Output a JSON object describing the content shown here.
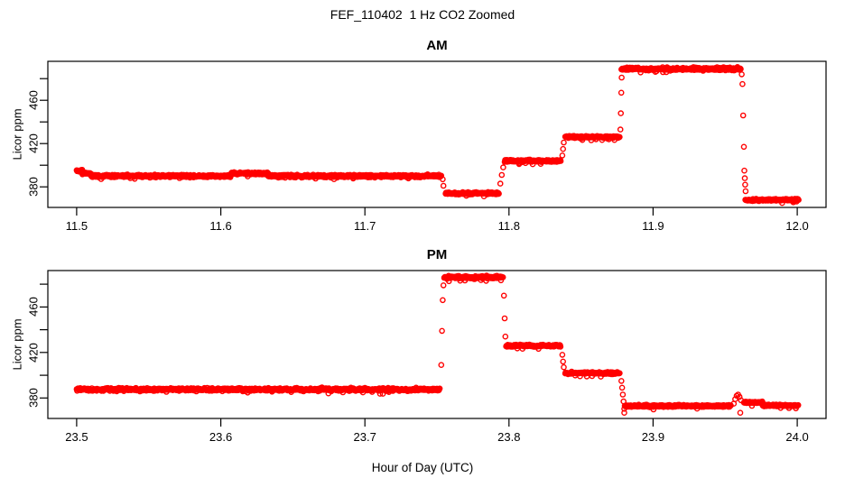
{
  "figure": {
    "title": "FEF_110402  1 Hz CO2 Zoomed",
    "xlabel": "Hour of Day (UTC)",
    "background": "#FFFFFF",
    "axis_color": "#000000",
    "point_color": "#FF0000"
  },
  "chart_data": [
    {
      "type": "scatter",
      "panel": "AM",
      "title": "AM",
      "ylabel": "Licor ppm",
      "xlabel": "",
      "marker": "open-circle",
      "color": "#FF0000",
      "sample_interval_s": 1,
      "grid": false,
      "legend": null,
      "xlim": [
        11.48,
        12.02
      ],
      "ylim": [
        361,
        496
      ],
      "xticks": [
        {
          "v": 11.5,
          "label": "11.5"
        },
        {
          "v": 11.6,
          "label": "11.6"
        },
        {
          "v": 11.7,
          "label": "11.7"
        },
        {
          "v": 11.8,
          "label": "11.8"
        },
        {
          "v": 11.9,
          "label": "11.9"
        },
        {
          "v": 12.0,
          "label": "12.0"
        }
      ],
      "yticks": [
        {
          "v": 380,
          "label": "380"
        },
        {
          "v": 400,
          "label": ""
        },
        {
          "v": 420,
          "label": "420"
        },
        {
          "v": 440,
          "label": ""
        },
        {
          "v": 460,
          "label": "460"
        },
        {
          "v": 480,
          "label": ""
        }
      ],
      "segments": [
        [
          11.5,
          11.504,
          395.0,
          0.9
        ],
        [
          11.504,
          11.51,
          392.5,
          0.9
        ],
        [
          11.51,
          11.607,
          390.0,
          1.2
        ],
        [
          11.607,
          11.633,
          392.5,
          1.0
        ],
        [
          11.633,
          11.753,
          390.0,
          1.2
        ],
        [
          11.756,
          11.793,
          374.0,
          1.0
        ],
        [
          11.797,
          11.836,
          404.0,
          1.0
        ],
        [
          11.839,
          11.877,
          426.0,
          1.0
        ],
        [
          11.878,
          11.961,
          489.0,
          1.3
        ],
        [
          11.964,
          12.001,
          368.0,
          0.9
        ]
      ],
      "extra_points": [
        [
          11.754,
          387
        ],
        [
          11.7545,
          381
        ],
        [
          11.794,
          383
        ],
        [
          11.795,
          391
        ],
        [
          11.796,
          398
        ],
        [
          11.837,
          409
        ],
        [
          11.8375,
          415
        ],
        [
          11.838,
          421
        ],
        [
          11.8773,
          433
        ],
        [
          11.8776,
          448
        ],
        [
          11.8779,
          467
        ],
        [
          11.8782,
          481
        ],
        [
          11.9615,
          484
        ],
        [
          11.962,
          475
        ],
        [
          11.9625,
          446
        ],
        [
          11.963,
          417
        ],
        [
          11.9633,
          395
        ],
        [
          11.9636,
          388
        ],
        [
          11.9639,
          382
        ],
        [
          11.9642,
          376
        ]
      ]
    },
    {
      "type": "scatter",
      "panel": "PM",
      "title": "PM",
      "ylabel": "Licor ppm",
      "xlabel": "Hour of Day (UTC)",
      "marker": "open-circle",
      "color": "#FF0000",
      "sample_interval_s": 1,
      "grid": false,
      "legend": null,
      "xlim": [
        23.48,
        24.02
      ],
      "ylim": [
        362,
        492
      ],
      "xticks": [
        {
          "v": 23.5,
          "label": "23.5"
        },
        {
          "v": 23.6,
          "label": "23.6"
        },
        {
          "v": 23.7,
          "label": "23.7"
        },
        {
          "v": 23.8,
          "label": "23.8"
        },
        {
          "v": 23.9,
          "label": "23.9"
        },
        {
          "v": 24.0,
          "label": "24.0"
        }
      ],
      "yticks": [
        {
          "v": 380,
          "label": "380"
        },
        {
          "v": 400,
          "label": ""
        },
        {
          "v": 420,
          "label": "420"
        },
        {
          "v": 440,
          "label": ""
        },
        {
          "v": 460,
          "label": "460"
        },
        {
          "v": 480,
          "label": ""
        }
      ],
      "segments": [
        [
          23.5,
          23.752,
          387.5,
          1.3
        ],
        [
          23.755,
          23.796,
          486.0,
          1.2
        ],
        [
          23.798,
          23.836,
          426.0,
          1.0
        ],
        [
          23.839,
          23.877,
          402.0,
          1.0
        ],
        [
          23.88,
          23.954,
          373.0,
          0.9
        ],
        [
          23.963,
          23.976,
          376.0,
          0.8
        ],
        [
          23.976,
          24.001,
          373.5,
          0.8
        ]
      ],
      "extra_points": [
        [
          23.753,
          409
        ],
        [
          23.7535,
          439
        ],
        [
          23.754,
          466
        ],
        [
          23.7545,
          479
        ],
        [
          23.7965,
          470
        ],
        [
          23.797,
          450
        ],
        [
          23.7975,
          434
        ],
        [
          23.837,
          418
        ],
        [
          23.8375,
          412
        ],
        [
          23.838,
          407
        ],
        [
          23.878,
          395
        ],
        [
          23.8785,
          389
        ],
        [
          23.879,
          383
        ],
        [
          23.8795,
          377
        ],
        [
          23.88,
          367
        ],
        [
          23.956,
          375
        ],
        [
          23.957,
          379
        ],
        [
          23.958,
          382
        ],
        [
          23.959,
          383
        ],
        [
          23.96,
          381
        ],
        [
          23.9605,
          367
        ],
        [
          23.961,
          378
        ]
      ]
    }
  ]
}
